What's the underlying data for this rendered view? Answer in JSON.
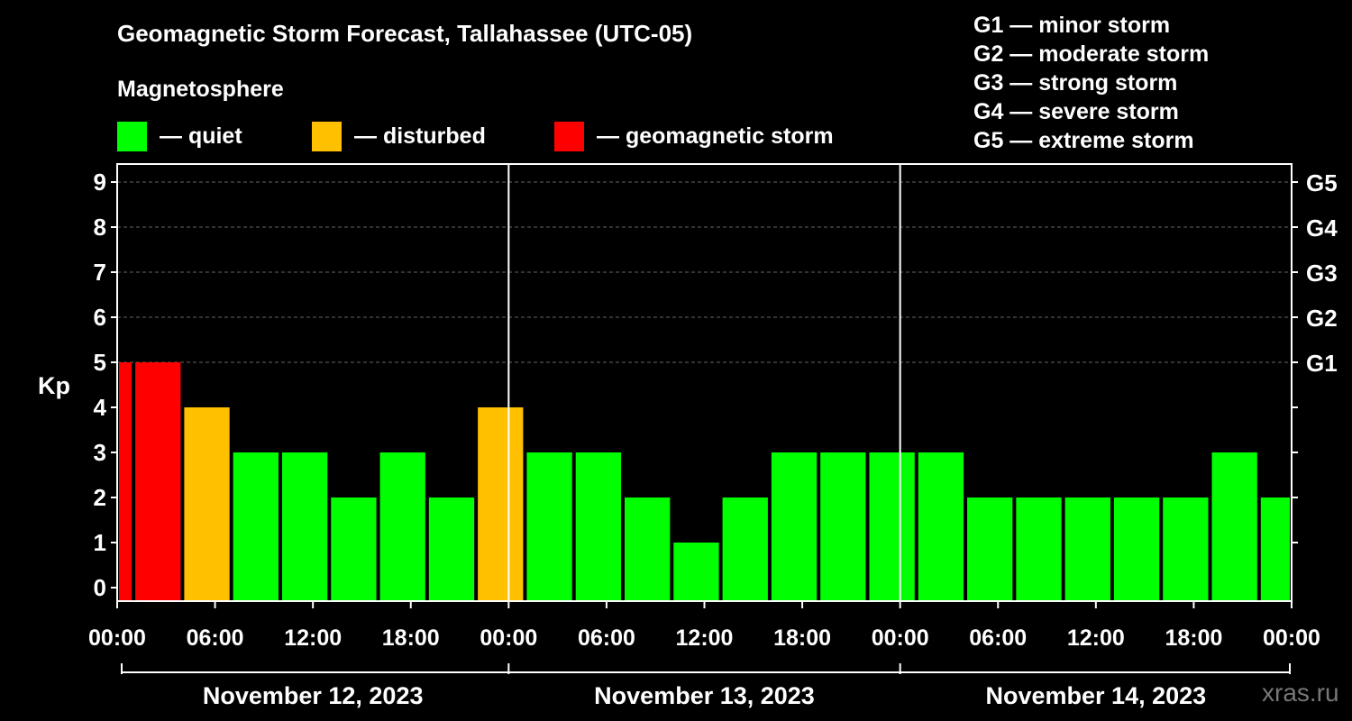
{
  "chart_data": {
    "type": "bar",
    "title": "Geomagnetic Storm Forecast, Tallahassee (UTC-05)",
    "subtitle": "Magnetosphere",
    "ylabel": "Kp",
    "ylim": [
      0,
      9
    ],
    "y_ticks": [
      "0",
      "1",
      "2",
      "3",
      "4",
      "5",
      "6",
      "7",
      "8",
      "9"
    ],
    "right_ticks": [
      {
        "kp": 5,
        "label": "G1"
      },
      {
        "kp": 6,
        "label": "G2"
      },
      {
        "kp": 7,
        "label": "G3"
      },
      {
        "kp": 8,
        "label": "G4"
      },
      {
        "kp": 9,
        "label": "G5"
      }
    ],
    "x_range_hours": [
      0,
      72
    ],
    "x_ticks": [
      {
        "hour": 0,
        "label": "00:00"
      },
      {
        "hour": 6,
        "label": "06:00"
      },
      {
        "hour": 12,
        "label": "12:00"
      },
      {
        "hour": 18,
        "label": "18:00"
      },
      {
        "hour": 24,
        "label": "00:00"
      },
      {
        "hour": 30,
        "label": "06:00"
      },
      {
        "hour": 36,
        "label": "12:00"
      },
      {
        "hour": 42,
        "label": "18:00"
      },
      {
        "hour": 48,
        "label": "00:00"
      },
      {
        "hour": 54,
        "label": "06:00"
      },
      {
        "hour": 60,
        "label": "12:00"
      },
      {
        "hour": 66,
        "label": "18:00"
      },
      {
        "hour": 72,
        "label": "00:00"
      }
    ],
    "days": [
      {
        "label": "November 12, 2023",
        "start_hour": 0,
        "end_hour": 24
      },
      {
        "label": "November 13, 2023",
        "start_hour": 24,
        "end_hour": 48
      },
      {
        "label": "November 14, 2023",
        "start_hour": 48,
        "end_hour": 72
      }
    ],
    "bars": [
      {
        "start_hour": 0,
        "end_hour": 1,
        "kp": 5,
        "level": "storm"
      },
      {
        "start_hour": 1,
        "end_hour": 4,
        "kp": 5,
        "level": "storm"
      },
      {
        "start_hour": 4,
        "end_hour": 7,
        "kp": 4,
        "level": "disturbed"
      },
      {
        "start_hour": 7,
        "end_hour": 10,
        "kp": 3,
        "level": "quiet"
      },
      {
        "start_hour": 10,
        "end_hour": 13,
        "kp": 3,
        "level": "quiet"
      },
      {
        "start_hour": 13,
        "end_hour": 16,
        "kp": 2,
        "level": "quiet"
      },
      {
        "start_hour": 16,
        "end_hour": 19,
        "kp": 3,
        "level": "quiet"
      },
      {
        "start_hour": 19,
        "end_hour": 22,
        "kp": 2,
        "level": "quiet"
      },
      {
        "start_hour": 22,
        "end_hour": 25,
        "kp": 4,
        "level": "disturbed"
      },
      {
        "start_hour": 25,
        "end_hour": 28,
        "kp": 3,
        "level": "quiet"
      },
      {
        "start_hour": 28,
        "end_hour": 31,
        "kp": 3,
        "level": "quiet"
      },
      {
        "start_hour": 31,
        "end_hour": 34,
        "kp": 2,
        "level": "quiet"
      },
      {
        "start_hour": 34,
        "end_hour": 37,
        "kp": 1,
        "level": "quiet"
      },
      {
        "start_hour": 37,
        "end_hour": 40,
        "kp": 2,
        "level": "quiet"
      },
      {
        "start_hour": 40,
        "end_hour": 43,
        "kp": 3,
        "level": "quiet"
      },
      {
        "start_hour": 43,
        "end_hour": 46,
        "kp": 3,
        "level": "quiet"
      },
      {
        "start_hour": 46,
        "end_hour": 49,
        "kp": 3,
        "level": "quiet"
      },
      {
        "start_hour": 49,
        "end_hour": 52,
        "kp": 3,
        "level": "quiet"
      },
      {
        "start_hour": 52,
        "end_hour": 55,
        "kp": 2,
        "level": "quiet"
      },
      {
        "start_hour": 55,
        "end_hour": 58,
        "kp": 2,
        "level": "quiet"
      },
      {
        "start_hour": 58,
        "end_hour": 61,
        "kp": 2,
        "level": "quiet"
      },
      {
        "start_hour": 61,
        "end_hour": 64,
        "kp": 2,
        "level": "quiet"
      },
      {
        "start_hour": 64,
        "end_hour": 67,
        "kp": 2,
        "level": "quiet"
      },
      {
        "start_hour": 67,
        "end_hour": 70,
        "kp": 3,
        "level": "quiet"
      },
      {
        "start_hour": 70,
        "end_hour": 72,
        "kp": 2,
        "level": "quiet"
      }
    ],
    "colors": {
      "quiet": "#00ff00",
      "disturbed": "#ffc000",
      "storm": "#ff0000"
    },
    "legend": [
      {
        "key": "quiet",
        "label": "— quiet"
      },
      {
        "key": "disturbed",
        "label": "— disturbed"
      },
      {
        "key": "storm",
        "label": "— geomagnetic storm"
      }
    ],
    "storm_scale": [
      "G1 — minor storm",
      "G2 — moderate storm",
      "G3 — strong storm",
      "G4 — severe storm",
      "G5 — extreme storm"
    ]
  },
  "watermark": "xras.ru"
}
